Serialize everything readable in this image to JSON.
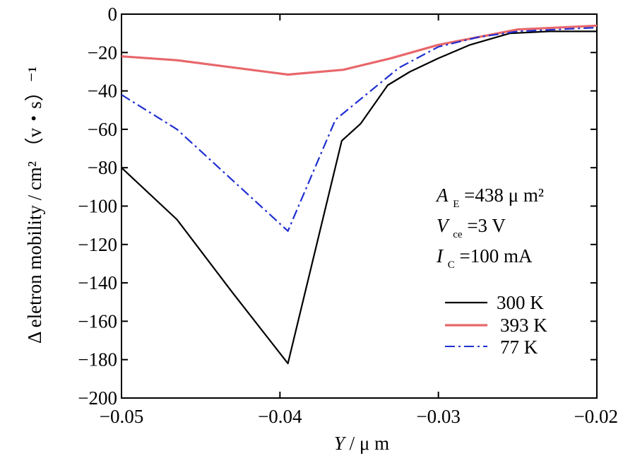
{
  "chart_data": {
    "type": "line",
    "xlabel": {
      "var": "Y",
      "unit": "/ μ m"
    },
    "ylabel": "Δ eletron mobility / cm² （v・s）⁻¹",
    "xlim": [
      -0.05,
      -0.02
    ],
    "ylim": [
      -200,
      0
    ],
    "x_ticks": [
      -0.05,
      -0.04,
      -0.03,
      -0.02
    ],
    "x_tick_labels": [
      "−0.05",
      "−0.04",
      "−0.03",
      "−0.02"
    ],
    "y_ticks": [
      0,
      -20,
      -40,
      -60,
      -80,
      -100,
      -120,
      -140,
      -160,
      -180,
      -200
    ],
    "y_tick_labels": [
      "0",
      "−20",
      "−40",
      "−60",
      "−80",
      "−100",
      "−120",
      "−140",
      "−160",
      "−180",
      "−200"
    ],
    "grid": false,
    "legend_position": "right",
    "annotations": [
      {
        "var": "A",
        "sub": "E",
        "text": "=438 μ m²"
      },
      {
        "var": "V",
        "sub": "ce",
        "text": "=3 V"
      },
      {
        "var": "I",
        "sub": "C",
        "text": "=100 mA"
      }
    ],
    "series": [
      {
        "name": "300 K",
        "color": "#000000",
        "style": "solid",
        "points": [
          [
            -0.05,
            -80
          ],
          [
            -0.0465,
            -107
          ],
          [
            -0.043,
            -145
          ],
          [
            -0.0395,
            -182
          ],
          [
            -0.0361,
            -66
          ],
          [
            -0.0349,
            -57
          ],
          [
            -0.0332,
            -37
          ],
          [
            -0.0318,
            -30
          ],
          [
            -0.03,
            -23
          ],
          [
            -0.028,
            -16
          ],
          [
            -0.0255,
            -10
          ],
          [
            -0.023,
            -9
          ],
          [
            -0.02,
            -9
          ]
        ]
      },
      {
        "name": "393 K",
        "color": "#e8676b",
        "style": "solid",
        "points": [
          [
            -0.05,
            -22
          ],
          [
            -0.0465,
            -24
          ],
          [
            -0.0395,
            -31.5
          ],
          [
            -0.036,
            -29
          ],
          [
            -0.033,
            -23
          ],
          [
            -0.03,
            -16
          ],
          [
            -0.0275,
            -12
          ],
          [
            -0.025,
            -8
          ],
          [
            -0.02,
            -6
          ]
        ]
      },
      {
        "name": "77 K",
        "color": "#1f2fd0",
        "style": "dashdot",
        "points": [
          [
            -0.05,
            -42
          ],
          [
            -0.0465,
            -60
          ],
          [
            -0.0395,
            -113
          ],
          [
            -0.0365,
            -55
          ],
          [
            -0.0325,
            -28
          ],
          [
            -0.03,
            -17
          ],
          [
            -0.0275,
            -12
          ],
          [
            -0.025,
            -9
          ],
          [
            -0.02,
            -7
          ]
        ]
      }
    ]
  }
}
